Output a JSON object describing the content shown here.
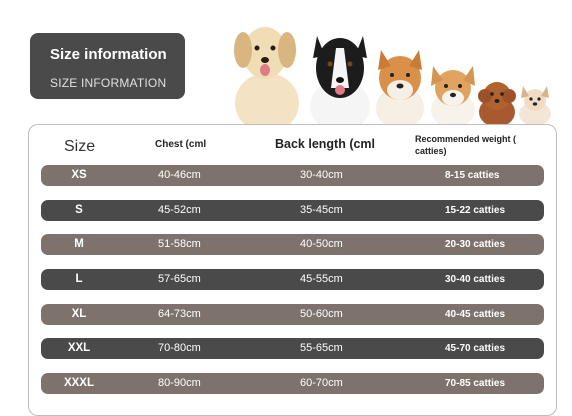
{
  "header": {
    "title": "Size information",
    "subtitle": "SIZE INFORMATION"
  },
  "table": {
    "columns": {
      "size": "Size",
      "chest": "Chest (cml",
      "back": "Back length (cml",
      "weight": "Recommended weight ( catties)"
    },
    "rows": [
      {
        "size": "XS",
        "chest": "40-46cm",
        "back": "30-40cm",
        "weight": "8-15 catties"
      },
      {
        "size": "S",
        "chest": "45-52cm",
        "back": "35-45cm",
        "weight": "15-22 catties"
      },
      {
        "size": "M",
        "chest": "51-58cm",
        "back": "40-50cm",
        "weight": "20-30 catties"
      },
      {
        "size": "L",
        "chest": "57-65cm",
        "back": "45-55cm",
        "weight": "30-40 catties"
      },
      {
        "size": "XL",
        "chest": "64-73cm",
        "back": "50-60cm",
        "weight": "40-45 catties"
      },
      {
        "size": "XXL",
        "chest": "70-80cm",
        "back": "55-65cm",
        "weight": "45-70 catties"
      },
      {
        "size": "XXXL",
        "chest": "80-90cm",
        "back": "60-70cm",
        "weight": "70-85 catties"
      }
    ]
  },
  "colors": {
    "row_light": "#7d736c",
    "row_dark": "#4a4a4a",
    "badge": "#4a4a4a"
  }
}
